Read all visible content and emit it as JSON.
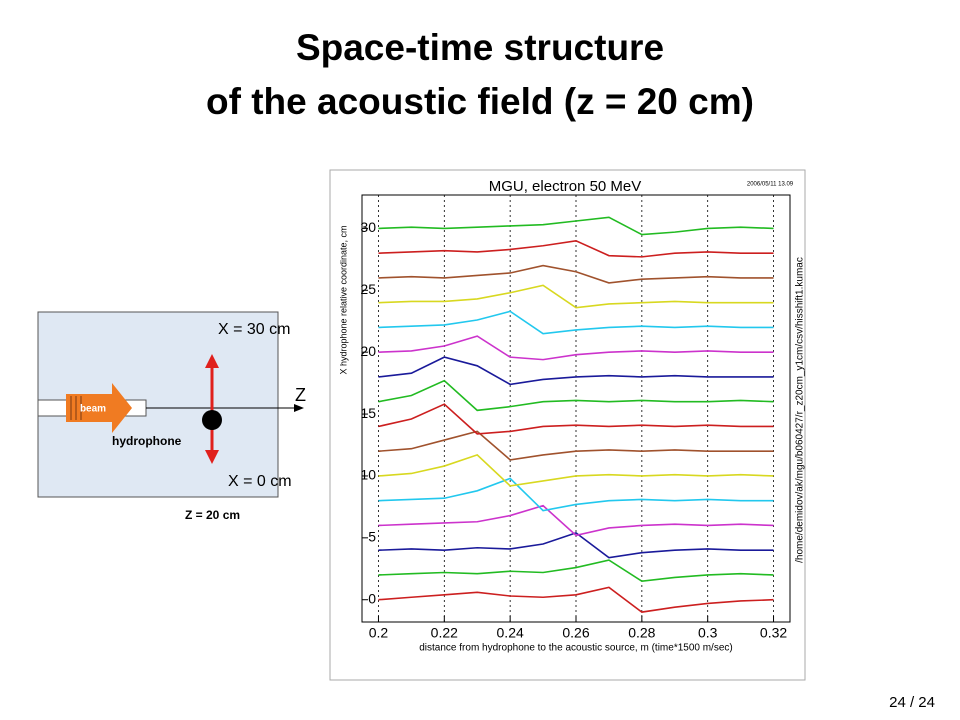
{
  "slide": {
    "title": [
      "Space-time structure",
      "of the acoustic field (z = 20 cm)"
    ],
    "page": "24 / 24"
  },
  "diagram": {
    "x_top": "X = 30 cm",
    "x_bottom": "X = 0 cm",
    "axis": "Z",
    "beam": "beam",
    "sensor": "hydrophone",
    "position": "Z = 20 cm"
  },
  "chart_data": {
    "type": "line",
    "title": "MGU, electron 50 MeV",
    "timestamp": "2006/05/11 13.09",
    "path_note": "/home/demidov/ak/mgu/b060427/r_z20cm_y1cm/csv/hisshift1.kumac",
    "x_label": "distance from hydrophone to the acoustic source, m (time*1500 m/sec)",
    "y_label": "X hydrophone relative coordinate, cm",
    "x": [
      0.2,
      0.21,
      0.22,
      0.23,
      0.24,
      0.25,
      0.26,
      0.27,
      0.28,
      0.29,
      0.3,
      0.31,
      0.32
    ],
    "xlim": [
      0.195,
      0.325
    ],
    "ylim": [
      -1.8,
      32.7
    ],
    "xticks": [
      0.2,
      0.22,
      0.24,
      0.26,
      0.28,
      0.3,
      0.32
    ],
    "yticks": [
      0,
      5,
      10,
      15,
      20,
      25,
      30
    ],
    "grid": true,
    "series": [
      {
        "color": "#cc1f1f",
        "values": [
          0,
          0.2,
          0.4,
          0.6,
          0.3,
          0.2,
          0.4,
          1,
          -1,
          -0.6,
          -0.3,
          -0.1,
          0
        ]
      },
      {
        "color": "#22bb22",
        "values": [
          2,
          2.1,
          2.2,
          2.1,
          2.3,
          2.2,
          2.6,
          3.2,
          1.5,
          1.8,
          2,
          2.1,
          2
        ]
      },
      {
        "color": "#1a1a9a",
        "values": [
          4,
          4.1,
          4,
          4.2,
          4.1,
          4.5,
          5.4,
          3.4,
          3.8,
          4,
          4.1,
          4,
          4
        ]
      },
      {
        "color": "#cc33cc",
        "values": [
          6,
          6.1,
          6.2,
          6.3,
          6.8,
          7.6,
          5.2,
          5.8,
          6,
          6.1,
          6,
          6.1,
          6
        ]
      },
      {
        "color": "#22c8ee",
        "values": [
          8,
          8.1,
          8.2,
          8.8,
          9.8,
          7.2,
          7.7,
          8,
          8.1,
          8,
          8.1,
          8,
          8
        ]
      },
      {
        "color": "#d8d820",
        "values": [
          10,
          10.2,
          10.8,
          11.7,
          9.2,
          9.6,
          10,
          10.1,
          10,
          10.1,
          10,
          10.1,
          10
        ]
      },
      {
        "color": "#a0522d",
        "values": [
          12,
          12.2,
          12.9,
          13.6,
          11.3,
          11.7,
          12,
          12.1,
          12,
          12.1,
          12,
          12,
          12
        ]
      },
      {
        "color": "#cc1f1f",
        "values": [
          14,
          14.6,
          15.8,
          13.4,
          13.6,
          14,
          14.1,
          14,
          14.1,
          14,
          14.1,
          14,
          14
        ]
      },
      {
        "color": "#22bb22",
        "values": [
          16,
          16.5,
          17.7,
          15.3,
          15.6,
          16,
          16.1,
          16,
          16.1,
          16,
          16,
          16.1,
          16
        ]
      },
      {
        "color": "#1a1a9a",
        "values": [
          18,
          18.3,
          19.6,
          18.9,
          17.4,
          17.8,
          18,
          18.1,
          18,
          18.1,
          18,
          18,
          18
        ]
      },
      {
        "color": "#cc33cc",
        "values": [
          20,
          20.1,
          20.5,
          21.3,
          19.6,
          19.4,
          19.8,
          20,
          20.1,
          20,
          20.1,
          20,
          20
        ]
      },
      {
        "color": "#22c8ee",
        "values": [
          22,
          22.1,
          22.2,
          22.6,
          23.3,
          21.5,
          21.8,
          22,
          22.1,
          22,
          22.1,
          22,
          22
        ]
      },
      {
        "color": "#d8d820",
        "values": [
          24,
          24.1,
          24.1,
          24.3,
          24.8,
          25.4,
          23.6,
          23.9,
          24,
          24.1,
          24,
          24,
          24
        ]
      },
      {
        "color": "#a0522d",
        "values": [
          26,
          26.1,
          26,
          26.2,
          26.4,
          27,
          26.5,
          25.6,
          25.9,
          26,
          26.1,
          26,
          26
        ]
      },
      {
        "color": "#cc1f1f",
        "values": [
          28,
          28.1,
          28.2,
          28.1,
          28.3,
          28.6,
          29,
          27.8,
          27.7,
          28,
          28.1,
          28,
          28
        ]
      },
      {
        "color": "#22bb22",
        "values": [
          30,
          30.1,
          30,
          30.1,
          30.2,
          30.3,
          30.6,
          30.9,
          29.5,
          29.7,
          30,
          30.1,
          30
        ]
      }
    ]
  }
}
